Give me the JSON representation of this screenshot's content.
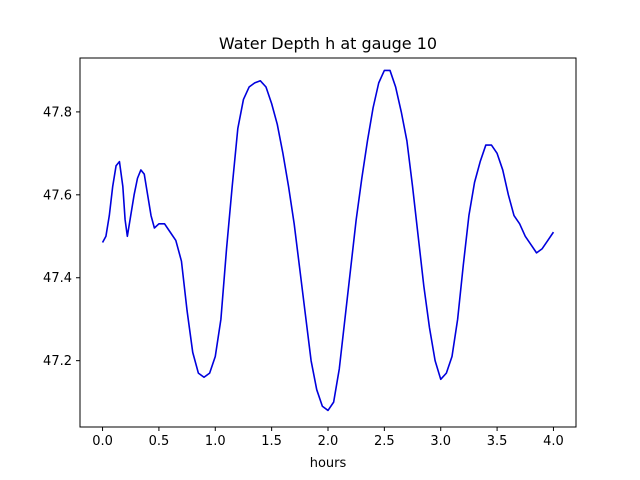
{
  "chart_data": {
    "type": "line",
    "title": "Water Depth h at gauge 10",
    "xlabel": "hours",
    "ylabel": "",
    "xlim": [
      -0.2,
      4.2
    ],
    "ylim": [
      47.04,
      47.93
    ],
    "xticks": [
      0.0,
      0.5,
      1.0,
      1.5,
      2.0,
      2.5,
      3.0,
      3.5,
      4.0
    ],
    "xtick_labels": [
      "0.0",
      "0.5",
      "1.0",
      "1.5",
      "2.0",
      "2.5",
      "3.0",
      "3.5",
      "4.0"
    ],
    "yticks": [
      47.2,
      47.4,
      47.6,
      47.8
    ],
    "ytick_labels": [
      "47.2",
      "47.4",
      "47.6",
      "47.8"
    ],
    "grid": false,
    "series": [
      {
        "color": "#0000dd",
        "x": [
          0.0,
          0.03,
          0.06,
          0.09,
          0.12,
          0.15,
          0.18,
          0.2,
          0.22,
          0.25,
          0.28,
          0.31,
          0.34,
          0.37,
          0.4,
          0.43,
          0.46,
          0.5,
          0.55,
          0.6,
          0.65,
          0.7,
          0.75,
          0.8,
          0.85,
          0.9,
          0.95,
          1.0,
          1.05,
          1.1,
          1.15,
          1.2,
          1.25,
          1.3,
          1.35,
          1.4,
          1.45,
          1.5,
          1.55,
          1.6,
          1.65,
          1.7,
          1.75,
          1.8,
          1.85,
          1.9,
          1.95,
          2.0,
          2.05,
          2.1,
          2.15,
          2.2,
          2.25,
          2.3,
          2.35,
          2.4,
          2.45,
          2.5,
          2.55,
          2.6,
          2.65,
          2.7,
          2.75,
          2.8,
          2.85,
          2.9,
          2.95,
          3.0,
          3.05,
          3.1,
          3.15,
          3.2,
          3.25,
          3.3,
          3.35,
          3.4,
          3.45,
          3.5,
          3.55,
          3.6,
          3.65,
          3.7,
          3.75,
          3.8,
          3.85,
          3.9,
          3.95,
          4.0
        ],
        "y": [
          47.485,
          47.5,
          47.55,
          47.62,
          47.67,
          47.68,
          47.62,
          47.54,
          47.5,
          47.55,
          47.6,
          47.64,
          47.66,
          47.65,
          47.6,
          47.55,
          47.52,
          47.53,
          47.53,
          47.51,
          47.49,
          47.44,
          47.32,
          47.22,
          47.17,
          47.16,
          47.17,
          47.21,
          47.3,
          47.47,
          47.62,
          47.76,
          47.83,
          47.86,
          47.87,
          47.875,
          47.86,
          47.82,
          47.77,
          47.7,
          47.62,
          47.53,
          47.42,
          47.31,
          47.2,
          47.13,
          47.09,
          47.08,
          47.1,
          47.18,
          47.3,
          47.42,
          47.54,
          47.64,
          47.73,
          47.81,
          47.87,
          47.9,
          47.9,
          47.86,
          47.8,
          47.73,
          47.62,
          47.5,
          47.38,
          47.28,
          47.2,
          47.155,
          47.17,
          47.21,
          47.3,
          47.43,
          47.55,
          47.63,
          47.68,
          47.72,
          47.72,
          47.7,
          47.66,
          47.6,
          47.55,
          47.53,
          47.5,
          47.48,
          47.46,
          47.47,
          47.49,
          47.51
        ]
      }
    ]
  }
}
